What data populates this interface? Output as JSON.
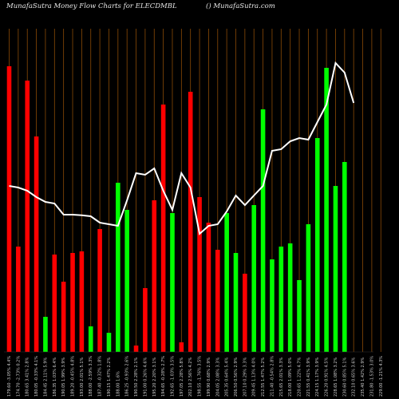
{
  "header": {
    "left": "MunafaSutra  Money Flow  Charts for ELECDMBL",
    "right": "() MunafaSutra.com"
  },
  "chart_data": {
    "type": "bar",
    "title": "MunafaSutra  Money Flow  Charts for ELECDMBL",
    "ylim": [
      0,
      100
    ],
    "categories": [
      "179.60 -3.05% 4.4%",
      "174.70 -2.73% 0.2%",
      "180.65 3.41% 2.8%",
      "180.05 -0.33% 4.1%",
      "184.45 2.11% 5.9%",
      "186.35 1.03% 6.4%",
      "190.05 1.99% 3.9%",
      "189.20 -0.45% 4.8%",
      "193.00 2.01% 5.1%",
      "188.00 -2.59% 3.3%",
      "187.40 -0.32% 1.8%",
      "190.15 1.47% 2.2%",
      "188.00 1.6%",
      "186.25 -0.93% 2.6%",
      "190.50 2.28% 2.1%",
      "191.00 0.26% 4.6%",
      "195.20 2.20% 3.1%",
      "194.65 -0.28% 2.7%",
      "192.65 -1.03% 3.5%",
      "197.05 2.28% 5.8%",
      "202.10 2.56% 4.2%",
      "198.55 -1.76% 3.5%",
      "199.90 0.68% 2.9%",
      "204.05 2.08% 3.3%",
      "205.35 0.64% 5.4%",
      "206.50 0.56% 2.9%",
      "207.10 0.29% 3.3%",
      "209.45 1.13% 4.0%",
      "212.55 1.47% 5.2%",
      "211.40 -0.54% 2.8%",
      "215.65 2.01% 3.3%",
      "218.00 1.09% 5.0%",
      "220.65 1.22% 4.7%",
      "221.55 0.41% 3.9%",
      "224.15 1.17% 3.9%",
      "226.20 0.91% 4.5%",
      "228.65 1.08% 3.2%",
      "230.60 0.85% 5.1%",
      "232.10 0.65% 3.6%",
      "235.40 1.42% 2.9%",
      "231.80 -1.53% 3.0%",
      "229.00 -1.21% 4.3%"
    ],
    "series": [
      {
        "colors": [
          "red",
          "red",
          "red",
          "red",
          "green",
          "red",
          "red",
          "red",
          "red",
          "green",
          "red",
          "green",
          "green",
          "green",
          "red",
          "red",
          "red",
          "red",
          "green",
          "red",
          "red",
          "red",
          "red",
          "red",
          "green",
          "green",
          "red",
          "green",
          "green",
          "green",
          "green",
          "green",
          "green",
          "green",
          "green",
          "green",
          "green",
          "green",
          "green",
          "green",
          "green",
          "red"
        ],
        "values": [
          89.5,
          33,
          85,
          67.5,
          11,
          30.5,
          22,
          31,
          31.5,
          8,
          38.5,
          6,
          53,
          44.5,
          2,
          20,
          47.5,
          77.5,
          43.5,
          3,
          81.5,
          48.5,
          40.5,
          32,
          43.5,
          31,
          24.5,
          46,
          76,
          29,
          33,
          34,
          22.5,
          40,
          67,
          89,
          52,
          59.5,
          0,
          0,
          0,
          0
        ]
      },
      {
        "values": [
          52,
          51.5,
          50.5,
          48.5,
          47,
          46.5,
          43,
          43,
          42.8,
          42.5,
          40.5,
          40,
          39.5,
          47.5,
          56,
          55.5,
          57.5,
          50.5,
          44.5,
          56,
          51.5,
          37,
          39.5,
          40,
          44,
          49,
          46,
          49,
          52,
          63,
          63.5,
          66,
          67,
          66.5,
          72,
          77.5,
          90.5,
          87.5,
          78,
          0,
          0,
          0
        ]
      }
    ]
  }
}
